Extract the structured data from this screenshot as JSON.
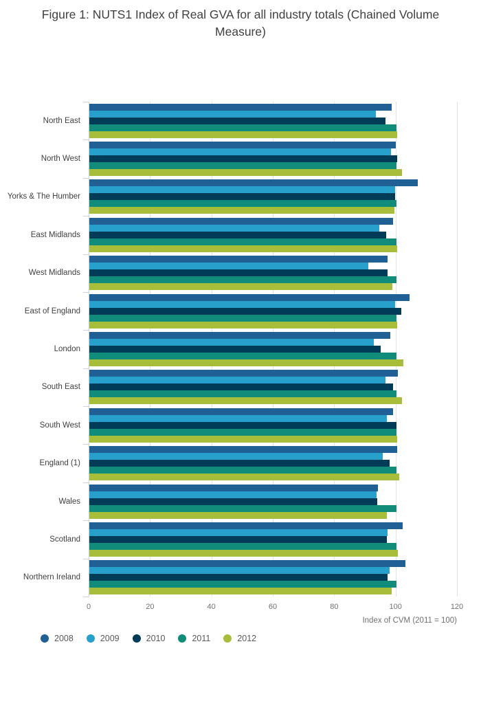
{
  "header": {
    "title": "Figure 1: NUTS1 Index of Real GVA for all industry totals (Chained Volume Measure)"
  },
  "chart_data": {
    "type": "bar",
    "orientation": "horizontal",
    "title": "Figure 1: NUTS1 Index of Real GVA for all industry totals (Chained Volume Measure)",
    "xlabel": "Index of CVM (2011 = 100)",
    "ylabel": "",
    "xlim": [
      0,
      120
    ],
    "xticks": [
      0,
      20,
      40,
      60,
      80,
      100,
      120
    ],
    "grid": true,
    "legend_position": "bottom",
    "categories": [
      "North East",
      "North West",
      "Yorks & The Humber",
      "East Midlands",
      "West Midlands",
      "East of England",
      "London",
      "South East",
      "South West",
      "England (1)",
      "Wales",
      "Scotland",
      "Northern Ireland"
    ],
    "series": [
      {
        "name": "2008",
        "color": "#206095",
        "values": [
          98.5,
          99.8,
          107.0,
          99.0,
          97.1,
          104.4,
          98.1,
          100.5,
          98.9,
          100.2,
          94.0,
          102.2,
          103.0
        ]
      },
      {
        "name": "2009",
        "color": "#27A0CC",
        "values": [
          93.4,
          98.3,
          99.6,
          94.4,
          90.8,
          99.6,
          92.6,
          96.6,
          97.0,
          95.6,
          93.5,
          97.2,
          97.8
        ]
      },
      {
        "name": "2010",
        "color": "#003C57",
        "values": [
          96.6,
          100.4,
          99.7,
          96.7,
          97.1,
          101.7,
          94.9,
          98.9,
          100.0,
          97.9,
          93.9,
          97.0,
          97.1
        ]
      },
      {
        "name": "2011",
        "color": "#118C7B",
        "values": [
          100.0,
          100.0,
          100.0,
          100.0,
          100.0,
          100.0,
          100.0,
          100.0,
          100.0,
          100.0,
          100.0,
          100.0,
          100.0
        ]
      },
      {
        "name": "2012",
        "color": "#A8BD3A",
        "values": [
          100.3,
          101.9,
          99.4,
          100.4,
          98.7,
          100.4,
          102.4,
          101.9,
          100.2,
          101.0,
          97.0,
          100.5,
          98.4
        ]
      }
    ]
  },
  "ui_colors": {
    "title_text": "#414042",
    "region_label_text": "#414042",
    "tick_label_text": "#707070",
    "legend_text": "#595959",
    "gridline": "#e3e3e3",
    "axis_line": "#c7d3e0",
    "background": "#ffffff"
  }
}
